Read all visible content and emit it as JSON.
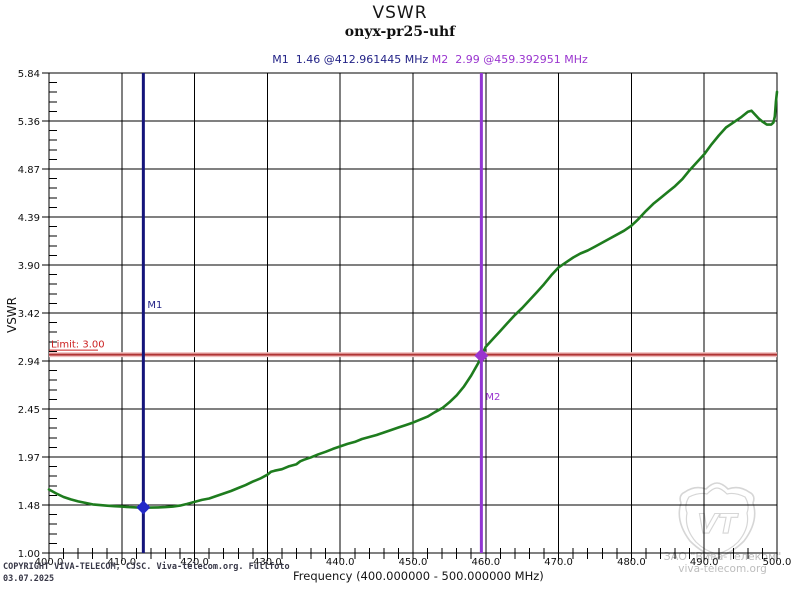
{
  "header": {
    "title": "VSWR",
    "subtitle": "onyx-pr25-uhf"
  },
  "marker_readout": {
    "m1": "M1  1.46 @412.961445 MHz",
    "m2": "M2  2.99 @459.392951 MHz"
  },
  "chart_data": {
    "type": "line",
    "title": "VSWR",
    "subtitle": "onyx-pr25-uhf",
    "xlabel": "Frequency (400.000000 - 500.000000 MHz)",
    "ylabel": "VSWR",
    "xlim": [
      400,
      500
    ],
    "ylim": [
      1.0,
      5.84
    ],
    "x_tick_labels": [
      "400.0",
      "410.0",
      "420.0",
      "430.0",
      "440.0",
      "450.0",
      "460.0",
      "470.0",
      "480.0",
      "490.0",
      "500.0"
    ],
    "y_tick_labels": [
      "1.00",
      "1.48",
      "1.97",
      "2.45",
      "2.94",
      "3.42",
      "3.90",
      "4.39",
      "4.87",
      "5.36",
      "5.84"
    ],
    "x_minor_step_mhz": 2,
    "y_minor_divisions_per_major": 5,
    "grid": true,
    "legend_position": "none",
    "series": [
      {
        "name": "VSWR trace",
        "color": "#1e7c1e",
        "points": [
          [
            400,
            1.64
          ],
          [
            401,
            1.6
          ],
          [
            402,
            1.565
          ],
          [
            403,
            1.54
          ],
          [
            404,
            1.52
          ],
          [
            405,
            1.505
          ],
          [
            406,
            1.49
          ],
          [
            407,
            1.483
          ],
          [
            408,
            1.477
          ],
          [
            409,
            1.472
          ],
          [
            410,
            1.468
          ],
          [
            411,
            1.463
          ],
          [
            412,
            1.46
          ],
          [
            413,
            1.458
          ],
          [
            414,
            1.458
          ],
          [
            415,
            1.46
          ],
          [
            416,
            1.463
          ],
          [
            417,
            1.468
          ],
          [
            418,
            1.478
          ],
          [
            419,
            1.495
          ],
          [
            420,
            1.515
          ],
          [
            421,
            1.535
          ],
          [
            422,
            1.55
          ],
          [
            423,
            1.575
          ],
          [
            424,
            1.6
          ],
          [
            425,
            1.625
          ],
          [
            426,
            1.655
          ],
          [
            427,
            1.685
          ],
          [
            428,
            1.72
          ],
          [
            429,
            1.75
          ],
          [
            430,
            1.79
          ],
          [
            430.5,
            1.82
          ],
          [
            431,
            1.83
          ],
          [
            432,
            1.845
          ],
          [
            433,
            1.875
          ],
          [
            434,
            1.895
          ],
          [
            434.5,
            1.925
          ],
          [
            435,
            1.94
          ],
          [
            436,
            1.965
          ],
          [
            437,
            1.995
          ],
          [
            438,
            2.02
          ],
          [
            439,
            2.05
          ],
          [
            440,
            2.075
          ],
          [
            441,
            2.1
          ],
          [
            442,
            2.12
          ],
          [
            443,
            2.15
          ],
          [
            444,
            2.17
          ],
          [
            445,
            2.19
          ],
          [
            446,
            2.215
          ],
          [
            447,
            2.24
          ],
          [
            448,
            2.265
          ],
          [
            449,
            2.29
          ],
          [
            450,
            2.315
          ],
          [
            451,
            2.345
          ],
          [
            452,
            2.375
          ],
          [
            453,
            2.42
          ],
          [
            454,
            2.46
          ],
          [
            454.5,
            2.49
          ],
          [
            455,
            2.52
          ],
          [
            456,
            2.59
          ],
          [
            457,
            2.68
          ],
          [
            458,
            2.79
          ],
          [
            459,
            2.92
          ],
          [
            459.393,
            2.99
          ],
          [
            460,
            3.08
          ],
          [
            461,
            3.16
          ],
          [
            462,
            3.24
          ],
          [
            463,
            3.32
          ],
          [
            464,
            3.4
          ],
          [
            465,
            3.47
          ],
          [
            466,
            3.55
          ],
          [
            467,
            3.63
          ],
          [
            468,
            3.71
          ],
          [
            469,
            3.8
          ],
          [
            470,
            3.88
          ],
          [
            471,
            3.93
          ],
          [
            472,
            3.98
          ],
          [
            473,
            4.02
          ],
          [
            474,
            4.05
          ],
          [
            475,
            4.09
          ],
          [
            476,
            4.13
          ],
          [
            477,
            4.17
          ],
          [
            478,
            4.21
          ],
          [
            479,
            4.25
          ],
          [
            480,
            4.3
          ],
          [
            481,
            4.37
          ],
          [
            482,
            4.45
          ],
          [
            483,
            4.52
          ],
          [
            484,
            4.58
          ],
          [
            485,
            4.64
          ],
          [
            486,
            4.7
          ],
          [
            487,
            4.77
          ],
          [
            488,
            4.86
          ],
          [
            489,
            4.94
          ],
          [
            490,
            5.02
          ],
          [
            491,
            5.12
          ],
          [
            492,
            5.21
          ],
          [
            493,
            5.29
          ],
          [
            494,
            5.34
          ],
          [
            495,
            5.39
          ],
          [
            496,
            5.45
          ],
          [
            496.5,
            5.46
          ],
          [
            497,
            5.42
          ],
          [
            497.5,
            5.38
          ],
          [
            498,
            5.35
          ],
          [
            498.6,
            5.32
          ],
          [
            499.2,
            5.32
          ],
          [
            499.5,
            5.34
          ],
          [
            499.7,
            5.4
          ],
          [
            499.85,
            5.55
          ],
          [
            500,
            5.65
          ]
        ]
      }
    ],
    "limit": {
      "value": 3.0,
      "label": "Limit: 3.00",
      "line_color": "#b03434",
      "halo_color": "#f0bfbf",
      "label_color": "#cc2222"
    },
    "markers": [
      {
        "id": "M1",
        "label": "M1",
        "freq_mhz": 412.961445,
        "vswr": 1.46,
        "line_color": "#14147a",
        "diamond_color": "#2228c8",
        "label_color": "#232387"
      },
      {
        "id": "M2",
        "label": "M2",
        "freq_mhz": 459.392951,
        "vswr": 2.99,
        "line_color": "#9137d2",
        "diamond_color": "#9a35cf",
        "label_color": "#9a35cf"
      }
    ]
  },
  "footer": {
    "copyright_line1": "COPYRIGHT VIVA-TELECOM, CJSC. Viva-telecom.org. Fullfoto",
    "copyright_line2": "03.07.2025"
  },
  "watermark": {
    "company": "ЗАО \"Вива-Телеком\"",
    "site": "viva-telecom.org",
    "monogram": "VT",
    "color": "#d6d6d6"
  }
}
